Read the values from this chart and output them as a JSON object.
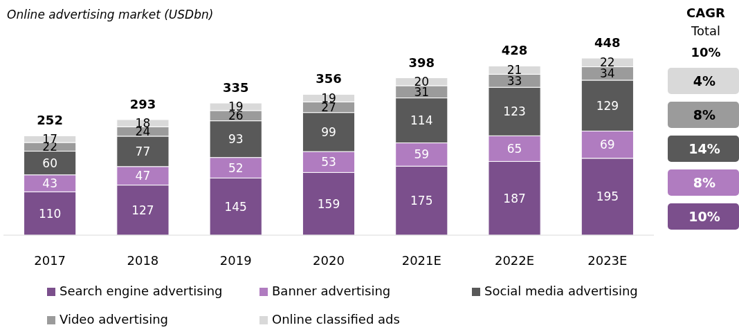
{
  "chart_data": {
    "type": "bar",
    "title": "Online advertising market (USDbn)",
    "stacked": true,
    "data_labels": true,
    "legend": "bottom",
    "categories": [
      "2017",
      "2018",
      "2019",
      "2020",
      "2021E",
      "2022E",
      "2023E"
    ],
    "series": [
      {
        "name": "Search engine advertising",
        "color": "#7b4f8c",
        "values": [
          110,
          127,
          145,
          159,
          175,
          187,
          195
        ]
      },
      {
        "name": "Banner advertising",
        "color": "#b07cc0",
        "values": [
          43,
          47,
          52,
          53,
          59,
          65,
          69
        ]
      },
      {
        "name": "Social media advertising",
        "color": "#595959",
        "values": [
          60,
          77,
          93,
          99,
          114,
          123,
          129
        ]
      },
      {
        "name": "Video advertising",
        "color": "#9b9b9b",
        "values": [
          22,
          24,
          26,
          27,
          31,
          33,
          34
        ]
      },
      {
        "name": "Online classified ads",
        "color": "#d9d9d9",
        "values": [
          17,
          18,
          19,
          19,
          20,
          21,
          22
        ]
      }
    ],
    "totals": [
      "252",
      "293",
      "335",
      "356",
      "398",
      "428",
      "448"
    ],
    "annotations": [
      "CAGR",
      "Total",
      "10%",
      "4%",
      "8%",
      "14%",
      "8%",
      "10%"
    ]
  }
}
